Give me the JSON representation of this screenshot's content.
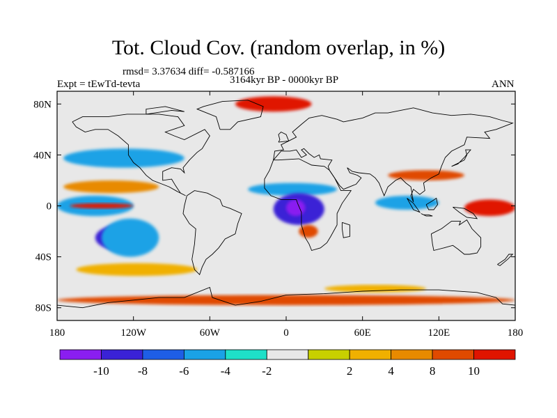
{
  "title": "Tot. Cloud Cov. (random overlap, in %)",
  "stats": "rmsd= 3.37634 diff= -0.587166",
  "period": "3164kyr BP - 0000kyr BP",
  "experiment": "Expt = tEwTd-tevta",
  "season": "ANN",
  "x_ticks": [
    {
      "label": "180",
      "lon": -180
    },
    {
      "label": "120W",
      "lon": -120
    },
    {
      "label": "60W",
      "lon": -60
    },
    {
      "label": "0",
      "lon": 0
    },
    {
      "label": "60E",
      "lon": 60
    },
    {
      "label": "120E",
      "lon": 120
    },
    {
      "label": "180",
      "lon": 180
    }
  ],
  "y_ticks": [
    {
      "label": "80N",
      "lat": 80
    },
    {
      "label": "40N",
      "lat": 40
    },
    {
      "label": "0",
      "lat": 0
    },
    {
      "label": "40S",
      "lat": -40
    },
    {
      "label": "80S",
      "lat": -80
    }
  ],
  "colorbar": {
    "colors": [
      "#8a1ef0",
      "#3a22d6",
      "#1e5ee6",
      "#1aa2e6",
      "#1ee0c8",
      "#e8e8e8",
      "#c8d000",
      "#f0b000",
      "#e88a00",
      "#e04a00",
      "#e01400"
    ],
    "labels": [
      "-10",
      "-8",
      "-6",
      "-4",
      "-2",
      "2",
      "4",
      "8",
      "10"
    ]
  },
  "chart_data": {
    "type": "heatmap",
    "title": "Tot. Cloud Cov. (random overlap, in %)",
    "lon_range": [
      -180,
      180
    ],
    "lat_range": [
      -90,
      90
    ],
    "levels": [
      -10,
      -8,
      -6,
      -4,
      -2,
      2,
      4,
      8,
      10
    ],
    "features": [
      {
        "lon": [
          -150,
          -110
        ],
        "lat": [
          -35,
          -15
        ],
        "level": -8
      },
      {
        "lon": [
          -145,
          -100
        ],
        "lat": [
          -40,
          -10
        ],
        "level": -4
      },
      {
        "lon": [
          -180,
          -120
        ],
        "lat": [
          -8,
          8
        ],
        "level": -4
      },
      {
        "lon": [
          -170,
          -120
        ],
        "lat": [
          -2,
          2
        ],
        "level": 10
      },
      {
        "lon": [
          -175,
          -100
        ],
        "lat": [
          10,
          20
        ],
        "level": 4
      },
      {
        "lon": [
          -175,
          -80
        ],
        "lat": [
          30,
          45
        ],
        "level": -4
      },
      {
        "lon": [
          -165,
          -70
        ],
        "lat": [
          -55,
          -45
        ],
        "level": 2
      },
      {
        "lon": [
          -30,
          40
        ],
        "lat": [
          8,
          18
        ],
        "level": -4
      },
      {
        "lon": [
          -10,
          30
        ],
        "lat": [
          -15,
          10
        ],
        "level": -8
      },
      {
        "lon": [
          0,
          15
        ],
        "lat": [
          -8,
          5
        ],
        "level": -10
      },
      {
        "lon": [
          10,
          25
        ],
        "lat": [
          -25,
          -15
        ],
        "level": 8
      },
      {
        "lon": [
          70,
          120
        ],
        "lat": [
          -3,
          8
        ],
        "level": -4
      },
      {
        "lon": [
          140,
          180
        ],
        "lat": [
          -8,
          5
        ],
        "level": 10
      },
      {
        "lon": [
          80,
          140
        ],
        "lat": [
          20,
          28
        ],
        "level": 8
      },
      {
        "lon": [
          -40,
          20
        ],
        "lat": [
          74,
          86
        ],
        "level": 10
      },
      {
        "lon": [
          -180,
          180
        ],
        "lat": [
          -78,
          -70
        ],
        "level": 8
      },
      {
        "lon": [
          30,
          110
        ],
        "lat": [
          -68,
          -62
        ],
        "level": 2
      }
    ]
  }
}
